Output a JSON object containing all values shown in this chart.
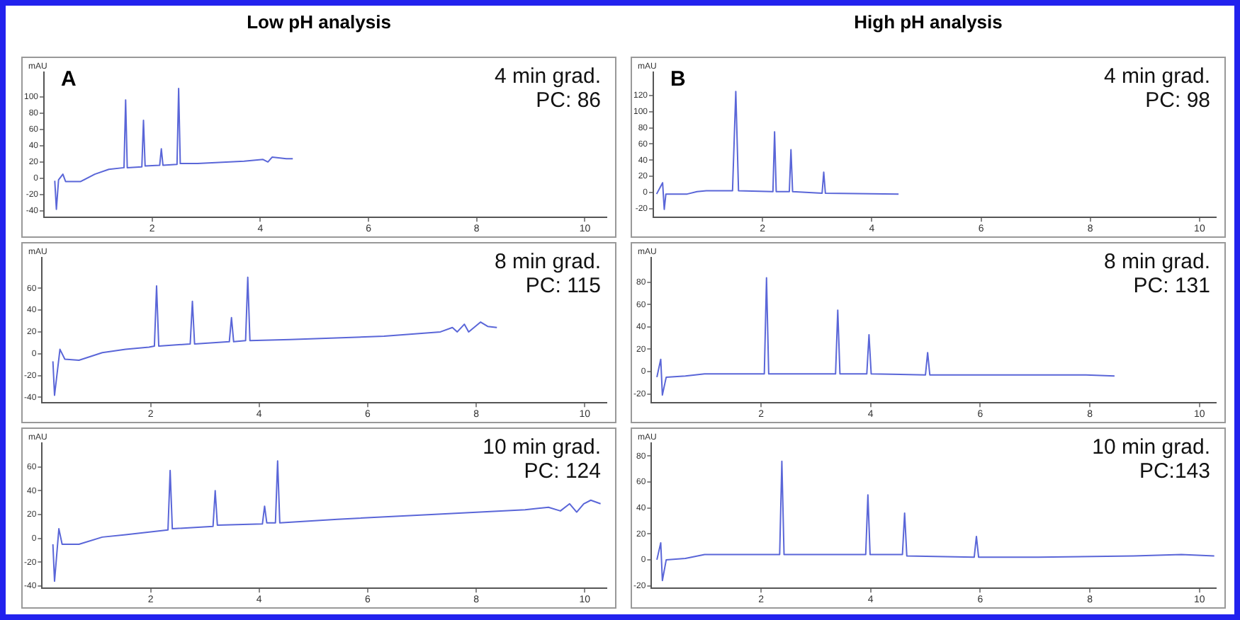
{
  "chart_data": [
    {
      "type": "line",
      "title": "Low pH analysis",
      "ylabel": "mAU",
      "annotations": [
        "A",
        "4 min grad.",
        "PC: 86"
      ],
      "marker": "none",
      "grid": false,
      "legend": false,
      "xlim": [
        0,
        10.4
      ],
      "xticks": [
        2,
        4,
        6,
        8,
        10
      ],
      "ylim": [
        -48,
        130
      ],
      "yticks": [
        -40,
        -20,
        0,
        20,
        40,
        60,
        80,
        100
      ],
      "series": [
        {
          "color": "#5a66d8",
          "x": [
            0.2,
            0.23,
            0.27,
            0.35,
            0.4,
            0.68,
            0.94,
            1.2,
            1.48,
            1.51,
            1.54,
            1.81,
            1.84,
            1.87,
            2.14,
            2.17,
            2.2,
            2.46,
            2.49,
            2.52,
            2.84,
            3.7,
            4.05,
            4.14,
            4.22,
            4.48,
            4.6
          ],
          "values": [
            -3,
            -38,
            -2,
            5,
            -4,
            -4,
            5,
            11,
            13,
            96,
            13,
            14,
            71,
            15,
            16,
            36,
            16,
            17,
            110,
            18,
            18,
            21,
            23,
            20,
            26,
            24,
            24
          ]
        }
      ]
    },
    {
      "type": "line",
      "title": "High pH analysis",
      "ylabel": "mAU",
      "annotations": [
        "B",
        "4 min grad.",
        "PC: 98"
      ],
      "marker": "none",
      "grid": false,
      "legend": false,
      "xlim": [
        0,
        10.3
      ],
      "xticks": [
        2,
        4,
        6,
        8,
        10
      ],
      "ylim": [
        -31,
        149
      ],
      "yticks": [
        -20,
        0,
        20,
        40,
        60,
        80,
        100,
        120
      ],
      "series": [
        {
          "color": "#5a66d8",
          "x": [
            0.06,
            0.17,
            0.2,
            0.23,
            0.62,
            0.8,
            0.97,
            1.45,
            1.51,
            1.56,
            2.19,
            2.22,
            2.25,
            2.49,
            2.52,
            2.55,
            3.09,
            3.12,
            3.15,
            4.49
          ],
          "values": [
            -2,
            12,
            -21,
            -2,
            -2,
            1,
            2,
            2,
            125,
            2,
            1,
            75,
            1,
            1,
            53,
            1,
            -1,
            25,
            -1,
            -2
          ]
        }
      ]
    },
    {
      "type": "line",
      "ylabel": "mAU",
      "annotations": [
        "8 min grad.",
        "PC: 115"
      ],
      "marker": "none",
      "grid": false,
      "legend": false,
      "xlim": [
        0,
        10.4
      ],
      "xticks": [
        2,
        4,
        6,
        8,
        10
      ],
      "ylim": [
        -45,
        88
      ],
      "yticks": [
        -40,
        -20,
        0,
        20,
        40,
        60
      ],
      "series": [
        {
          "color": "#5a66d8",
          "x": [
            0.2,
            0.23,
            0.33,
            0.42,
            0.68,
            1.11,
            1.54,
            1.97,
            2.07,
            2.11,
            2.15,
            2.73,
            2.77,
            2.81,
            3.45,
            3.49,
            3.53,
            3.75,
            3.79,
            3.83,
            4.57,
            6.3,
            7.34,
            7.56,
            7.65,
            7.78,
            7.86,
            8.08,
            8.21,
            8.38
          ],
          "values": [
            -7,
            -38,
            4,
            -5,
            -6,
            1,
            4,
            6,
            7,
            62,
            7,
            9,
            48,
            9,
            11,
            33,
            11,
            12,
            70,
            12,
            13,
            16,
            20,
            24,
            20,
            27,
            20,
            29,
            25,
            24
          ]
        }
      ]
    },
    {
      "type": "line",
      "ylabel": "mAU",
      "annotations": [
        "8 min grad.",
        "PC: 131"
      ],
      "marker": "none",
      "grid": false,
      "legend": false,
      "xlim": [
        0,
        10.3
      ],
      "xticks": [
        2,
        4,
        6,
        8,
        10
      ],
      "ylim": [
        -28,
        102
      ],
      "yticks": [
        -20,
        0,
        20,
        40,
        60,
        80
      ],
      "series": [
        {
          "color": "#5a66d8",
          "x": [
            0.1,
            0.17,
            0.2,
            0.27,
            0.62,
            0.97,
            1.84,
            2.06,
            2.1,
            2.14,
            3.36,
            3.4,
            3.44,
            3.93,
            3.97,
            4.01,
            5.0,
            5.04,
            5.08,
            6.19,
            7.93,
            8.45
          ],
          "values": [
            -5,
            11,
            -21,
            -5,
            -4,
            -2,
            -2,
            -2,
            84,
            -2,
            -2,
            55,
            -2,
            -2,
            33,
            -2,
            -3,
            17,
            -3,
            -3,
            -3,
            -4
          ]
        }
      ]
    },
    {
      "type": "line",
      "ylabel": "mAU",
      "annotations": [
        "10 min grad.",
        "PC: 124"
      ],
      "marker": "none",
      "grid": false,
      "legend": false,
      "xlim": [
        0,
        10.4
      ],
      "xticks": [
        2,
        4,
        6,
        8,
        10
      ],
      "ylim": [
        -42,
        80
      ],
      "yticks": [
        -40,
        -20,
        0,
        20,
        40,
        60
      ],
      "series": [
        {
          "color": "#5a66d8",
          "x": [
            0.2,
            0.23,
            0.31,
            0.37,
            0.68,
            1.11,
            1.54,
            2.32,
            2.36,
            2.4,
            3.15,
            3.19,
            3.23,
            4.06,
            4.1,
            4.14,
            4.3,
            4.34,
            4.38,
            5.44,
            7.17,
            8.9,
            9.33,
            9.55,
            9.72,
            9.85,
            9.98,
            10.11,
            10.29
          ],
          "values": [
            -5,
            -36,
            8,
            -5,
            -5,
            1,
            3,
            7,
            57,
            8,
            10,
            40,
            11,
            12,
            27,
            13,
            13,
            65,
            13,
            16,
            20,
            24,
            26,
            23,
            29,
            22,
            29,
            32,
            29
          ]
        }
      ]
    },
    {
      "type": "line",
      "ylabel": "mAU",
      "annotations": [
        "10 min grad.",
        "PC:143"
      ],
      "marker": "none",
      "grid": false,
      "legend": false,
      "xlim": [
        0,
        10.3
      ],
      "xticks": [
        2,
        4,
        6,
        8,
        10
      ],
      "ylim": [
        -22,
        90
      ],
      "yticks": [
        -20,
        0,
        20,
        40,
        60,
        80
      ],
      "series": [
        {
          "color": "#5a66d8",
          "x": [
            0.1,
            0.17,
            0.2,
            0.27,
            0.62,
            0.97,
            1.84,
            2.34,
            2.38,
            2.42,
            3.91,
            3.95,
            3.99,
            4.58,
            4.62,
            4.66,
            5.89,
            5.93,
            5.97,
            7.06,
            8.8,
            9.67,
            10.27
          ],
          "values": [
            0,
            13,
            -16,
            0,
            1,
            4,
            4,
            4,
            76,
            4,
            4,
            50,
            4,
            4,
            36,
            3,
            2,
            18,
            2,
            2,
            3,
            4,
            3
          ]
        }
      ]
    }
  ]
}
